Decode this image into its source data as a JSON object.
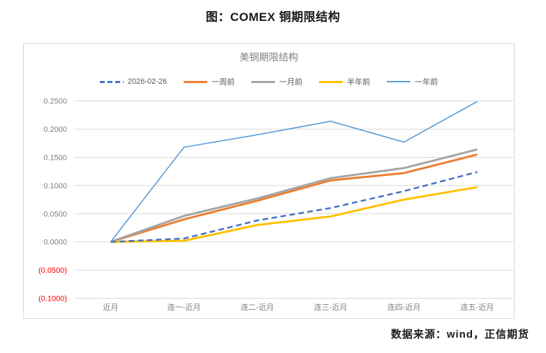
{
  "page": {
    "title": "图：COMEX 铜期限结构",
    "source": "数据来源：wind，正信期货"
  },
  "chart_data": {
    "type": "line",
    "title": "美铜期限结构",
    "categories": [
      "近月",
      "连一-近月",
      "连二-近月",
      "连三-近月",
      "连四-近月",
      "连五-近月"
    ],
    "series": [
      {
        "name": "2026-02-26",
        "color": "#4472C4",
        "style": "dashed",
        "width": 2.5,
        "values": [
          0.0,
          0.006,
          0.038,
          0.06,
          0.09,
          0.124
        ]
      },
      {
        "name": "一周前",
        "color": "#ED7D31",
        "style": "solid",
        "width": 3,
        "values": [
          0.0,
          0.04,
          0.073,
          0.109,
          0.122,
          0.155
        ]
      },
      {
        "name": "一月前",
        "color": "#A5A5A5",
        "style": "solid",
        "width": 3,
        "values": [
          0.0,
          0.046,
          0.077,
          0.113,
          0.131,
          0.164
        ]
      },
      {
        "name": "半年前",
        "color": "#FFC000",
        "style": "solid",
        "width": 3,
        "values": [
          0.0,
          0.002,
          0.03,
          0.045,
          0.075,
          0.097
        ]
      },
      {
        "name": "一年前",
        "color": "#5B9BD5",
        "style": "solid",
        "width": 1.6,
        "values": [
          0.0,
          0.168,
          0.19,
          0.214,
          0.177,
          0.249
        ]
      }
    ],
    "y_ticks": [
      {
        "label": "0.2500",
        "value": 0.25,
        "negative": false
      },
      {
        "label": "0.2000",
        "value": 0.2,
        "negative": false
      },
      {
        "label": "0.1500",
        "value": 0.15,
        "negative": false
      },
      {
        "label": "0.1000",
        "value": 0.1,
        "negative": false
      },
      {
        "label": "0.0500",
        "value": 0.05,
        "negative": false
      },
      {
        "label": "0.0000",
        "value": 0.0,
        "negative": false
      },
      {
        "label": "(0.0500)",
        "value": -0.05,
        "negative": true
      },
      {
        "label": "(0.1000)",
        "value": -0.1,
        "negative": true
      }
    ],
    "ylim": [
      -0.1,
      0.25
    ],
    "grid": true,
    "legend_position": "top",
    "colors": {
      "grid": "#D9D9D9",
      "tick_text": "#7F7F7F",
      "negative_tick_text": "#FF0000",
      "title_text": "#7F7F7F",
      "legend_text": "#595959",
      "chart_border": "#D9D9D9"
    }
  }
}
